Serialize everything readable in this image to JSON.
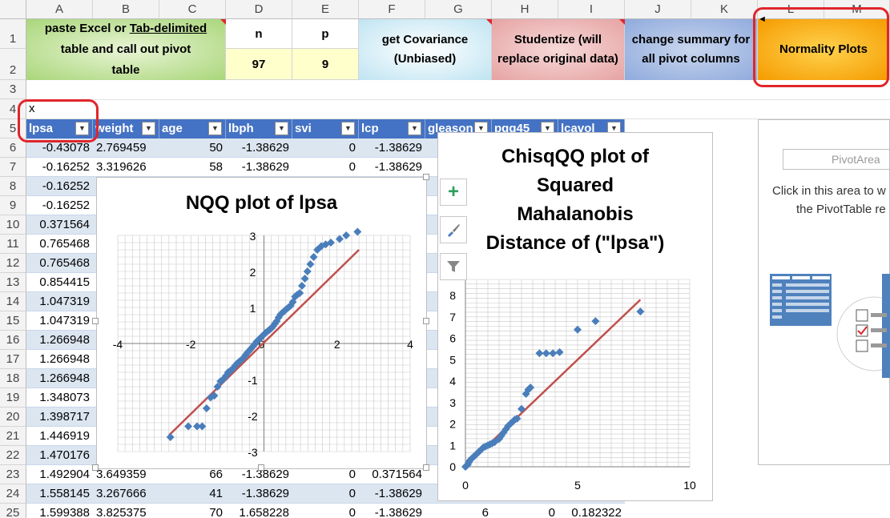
{
  "columns": [
    "A",
    "B",
    "C",
    "D",
    "E",
    "F",
    "G",
    "H",
    "I",
    "J",
    "K",
    "L",
    "M"
  ],
  "rows": [
    "1",
    "2",
    "3",
    "4",
    "5",
    "6",
    "7",
    "8",
    "9",
    "10",
    "11",
    "12",
    "13",
    "14",
    "15",
    "16",
    "17",
    "18",
    "19",
    "20",
    "21",
    "22",
    "23",
    "24",
    "25"
  ],
  "ribbon": {
    "paste_line1": "paste Excel or ",
    "paste_link": "Tab-delimited",
    "paste_line2": "table and call out pivot",
    "paste_line3": "table",
    "n_label": "n",
    "p_label": "p",
    "n_value": "97",
    "p_value": "9",
    "cov_line1": "get Covariance",
    "cov_line2": "(Unbiased)",
    "stud_line1": "Studentize (will",
    "stud_line2": "replace original data)",
    "summ_line1": "change summary for",
    "summ_line2": "all pivot columns",
    "normality": "Normality Plots"
  },
  "cell_a4": "x",
  "table": {
    "headers": [
      "lpsa",
      "weight",
      "age",
      "lbph",
      "svi",
      "lcp",
      "gleason",
      "pgg45",
      "lcavol"
    ],
    "rows": [
      [
        "-0.43078",
        "2.769459",
        "50",
        "-1.38629",
        "0",
        "-1.38629"
      ],
      [
        "-0.16252",
        "3.319626",
        "58",
        "-1.38629",
        "0",
        "-1.38629"
      ],
      [
        "-0.16252"
      ],
      [
        "-0.16252"
      ],
      [
        "0.371564"
      ],
      [
        "0.765468"
      ],
      [
        "0.765468"
      ],
      [
        "0.854415"
      ],
      [
        "1.047319"
      ],
      [
        "1.047319"
      ],
      [
        "1.266948"
      ],
      [
        "1.266948"
      ],
      [
        "1.266948"
      ],
      [
        "1.348073"
      ],
      [
        "1.398717"
      ],
      [
        "1.446919"
      ],
      [
        "1.470176"
      ],
      [
        "1.492904",
        "3.649359",
        "66",
        "-1.38629",
        "0",
        "0.371564"
      ],
      [
        "1.558145",
        "3.267666",
        "41",
        "-1.38629",
        "0",
        "-1.38629"
      ],
      [
        "1.599388",
        "3.825375",
        "70",
        "1.658228",
        "0",
        "-1.38629",
        "6",
        "0",
        "0.182322"
      ]
    ]
  },
  "nqq": {
    "title": "NQQ plot of lpsa",
    "x_ticks": [
      "-4",
      "-2",
      "0",
      "2",
      "4"
    ],
    "y_ticks": [
      "3",
      "2",
      "1",
      "0",
      "-1",
      "-2",
      "-3"
    ]
  },
  "chisq": {
    "title_lines": [
      "ChisqQQ plot of",
      "Squared",
      "Mahalanobis",
      "Distance of (\"lpsa\")"
    ],
    "x_ticks": [
      "0",
      "5",
      "10"
    ],
    "y_ticks": [
      "8",
      "7",
      "6",
      "5",
      "4",
      "3",
      "2",
      "1",
      "0"
    ]
  },
  "pivot": {
    "area_label": "PivotArea",
    "hint_line1": "Click in this area to w",
    "hint_line2": "the PivotTable re"
  },
  "chart_data": [
    {
      "type": "scatter",
      "title": "NQQ plot of lpsa",
      "xlim": [
        -4,
        4
      ],
      "ylim": [
        -3,
        3
      ],
      "series": [
        {
          "x": [
            -2.56,
            -2.07,
            -1.83,
            -1.69,
            -1.57,
            -1.46,
            -1.36,
            -1.27,
            -1.19,
            -1.12,
            -1.04,
            -0.98,
            -0.91,
            -0.85,
            -0.79,
            -0.73,
            -0.67,
            -0.61,
            -0.56,
            -0.5,
            -0.45,
            -0.4,
            -0.35,
            -0.3,
            -0.25,
            -0.2,
            -0.15,
            -0.1,
            -0.05,
            0.0,
            0.05,
            0.1,
            0.15,
            0.2,
            0.25,
            0.3,
            0.35,
            0.4,
            0.45,
            0.5,
            0.56,
            0.61,
            0.67,
            0.73,
            0.79,
            0.85,
            0.91,
            0.98,
            1.04,
            1.12,
            1.19,
            1.27,
            1.36,
            1.46,
            1.57,
            1.69,
            1.83,
            2.07,
            2.25,
            2.56
          ],
          "y": [
            -2.6,
            -2.3,
            -2.3,
            -2.3,
            -1.8,
            -1.5,
            -1.45,
            -1.2,
            -1.05,
            -1.0,
            -0.9,
            -0.8,
            -0.75,
            -0.7,
            -0.62,
            -0.55,
            -0.5,
            -0.45,
            -0.4,
            -0.32,
            -0.25,
            -0.2,
            -0.14,
            -0.08,
            -0.02,
            0.05,
            0.1,
            0.15,
            0.2,
            0.25,
            0.3,
            0.34,
            0.38,
            0.42,
            0.48,
            0.55,
            0.62,
            0.72,
            0.8,
            0.85,
            0.9,
            0.95,
            1.0,
            1.05,
            1.15,
            1.3,
            1.35,
            1.4,
            1.6,
            1.8,
            2.0,
            2.2,
            2.4,
            2.6,
            2.7,
            2.75,
            2.8,
            2.9,
            3.0,
            3.1
          ]
        },
        {
          "x": [
            -2.6,
            2.6
          ],
          "y": [
            -2.55,
            2.6
          ]
        }
      ]
    },
    {
      "type": "scatter",
      "title": "ChisqQQ plot of Squared Mahalanobis Distance of (\"lpsa\")",
      "xlim": [
        0,
        10
      ],
      "ylim": [
        0,
        8
      ],
      "series": [
        {
          "x": [
            0.0,
            0.05,
            0.1,
            0.15,
            0.2,
            0.3,
            0.4,
            0.5,
            0.6,
            0.7,
            0.8,
            0.9,
            1.0,
            1.1,
            1.2,
            1.3,
            1.5,
            1.6,
            1.7,
            1.8,
            1.9,
            2.0,
            2.1,
            2.2,
            2.3,
            2.5,
            2.7,
            2.8,
            2.9,
            3.3,
            3.6,
            3.9,
            4.2,
            5.0,
            5.8,
            7.8
          ],
          "y": [
            0.0,
            0.05,
            0.1,
            0.2,
            0.3,
            0.4,
            0.5,
            0.6,
            0.7,
            0.8,
            0.9,
            0.95,
            1.0,
            1.05,
            1.1,
            1.15,
            1.3,
            1.45,
            1.6,
            1.75,
            1.9,
            2.0,
            2.1,
            2.2,
            2.25,
            2.7,
            3.4,
            3.6,
            3.7,
            5.3,
            5.3,
            5.3,
            5.35,
            6.4,
            6.8,
            7.25
          ]
        },
        {
          "x": [
            0,
            7.8
          ],
          "y": [
            0,
            7.8
          ]
        }
      ]
    }
  ]
}
